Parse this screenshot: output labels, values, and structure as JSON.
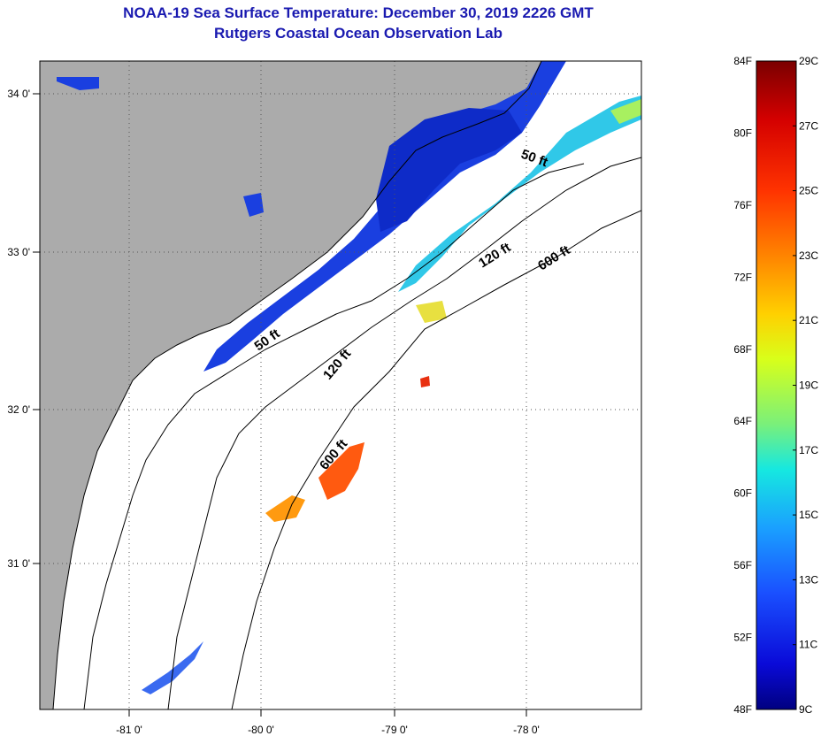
{
  "title": {
    "line1": "NOAA-19 Sea Surface Temperature:  December 30, 2019 2226 GMT",
    "line2": "Rutgers Coastal Ocean Observation Lab"
  },
  "map": {
    "lon_labels": [
      "-81 0'",
      "-80 0'",
      "-79 0'",
      "-78 0'"
    ],
    "lat_labels": [
      "34 0'",
      "33 0'",
      "32 0'",
      "31 0'"
    ],
    "contour_labels": [
      "50 ft",
      "120 ft",
      "600 ft",
      "50 ft",
      "120 ft",
      "600 ft"
    ],
    "land_color": "#ababab",
    "ocean_color": "#ffffff"
  },
  "colorbar": {
    "fahrenheit": [
      "84F",
      "80F",
      "76F",
      "72F",
      "68F",
      "64F",
      "60F",
      "56F",
      "52F",
      "48F"
    ],
    "celsius": [
      "29C",
      "27C",
      "25C",
      "23C",
      "21C",
      "19C",
      "17C",
      "15C",
      "13C",
      "11C",
      "9C"
    ],
    "colors": [
      "#7a0000",
      "#d40000",
      "#ff3300",
      "#ff8c00",
      "#ffd000",
      "#d8ff1a",
      "#7af07a",
      "#16e8e0",
      "#1aa0ff",
      "#1a50ff",
      "#0a0ad8",
      "#000080"
    ]
  }
}
